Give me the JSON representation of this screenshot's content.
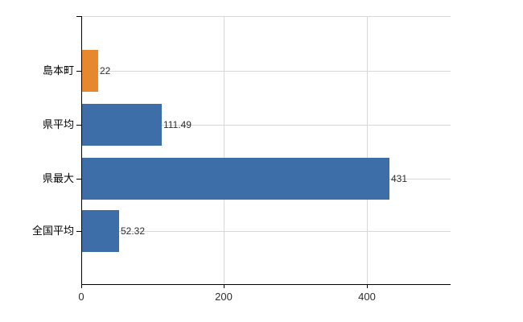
{
  "chart_data": {
    "type": "bar",
    "orientation": "horizontal",
    "title": "",
    "xlabel": "",
    "ylabel": "",
    "categories": [
      "島本町",
      "県平均",
      "県最大",
      "全国平均"
    ],
    "values": [
      22,
      111.49,
      431,
      52.32
    ],
    "value_labels": [
      "22",
      "111.49",
      "431",
      "52.32"
    ],
    "bar_colors": [
      "#e5882e",
      "#3d6ea8",
      "#3d6ea8",
      "#3d6ea8"
    ],
    "x_ticks": [
      0,
      200,
      400
    ],
    "x_tick_labels": [
      "0",
      "200",
      "400"
    ],
    "xlim": [
      0,
      517.2
    ],
    "grid": "on",
    "legend": "none",
    "colors": {
      "axis": "#000000",
      "grid": "#d8d8d8",
      "category_text": "#000000",
      "value_text": "#2e2e2e",
      "tick_text": "#2e2e2e",
      "background": "#ffffff"
    }
  }
}
